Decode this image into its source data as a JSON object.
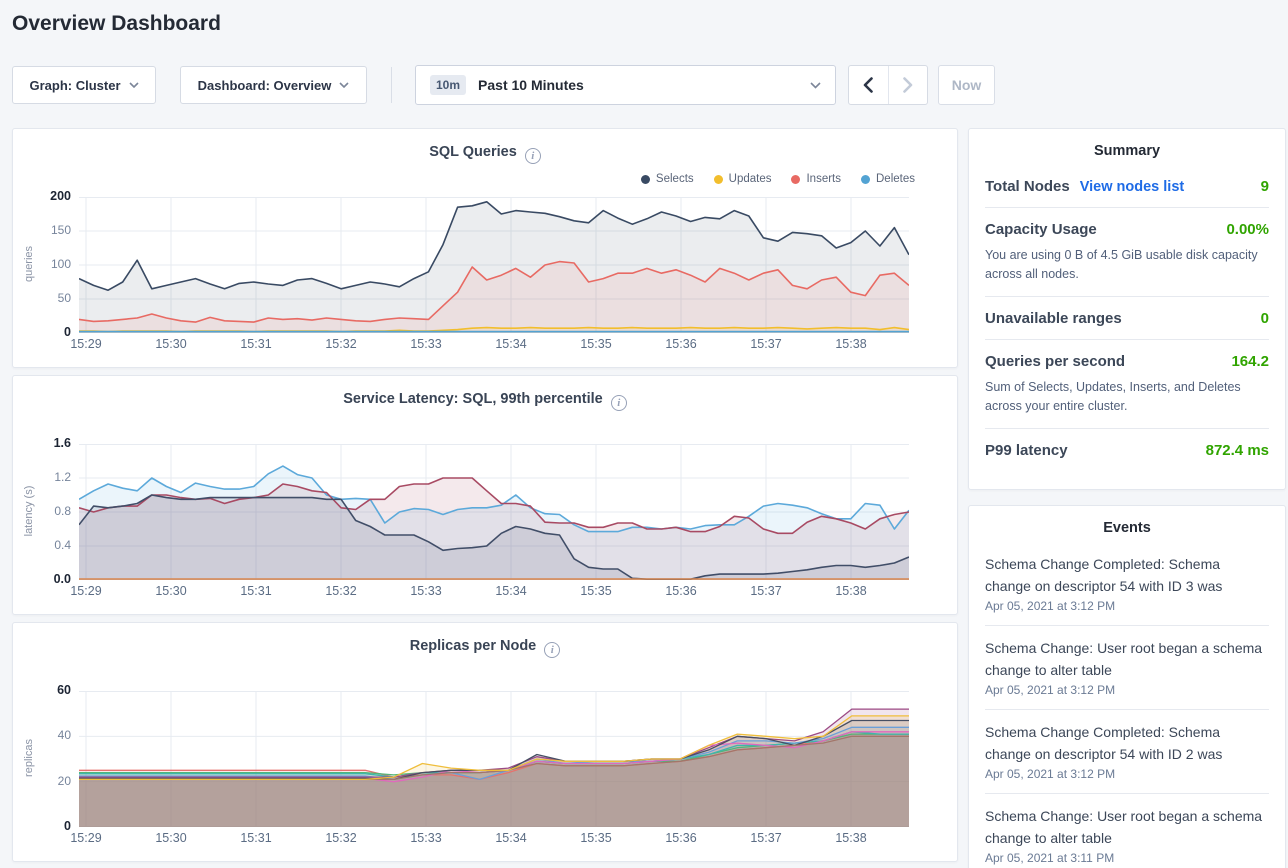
{
  "page_title": "Overview Dashboard",
  "toolbar": {
    "graph_dropdown": "Graph: Cluster",
    "dashboard_dropdown": "Dashboard: Overview",
    "time_badge": "10m",
    "time_label": "Past 10 Minutes",
    "now_label": "Now"
  },
  "summary": {
    "title": "Summary",
    "rows": [
      {
        "label": "Total Nodes",
        "link": "View nodes list",
        "value": "9"
      },
      {
        "label": "Capacity Usage",
        "value": "0.00%",
        "note": "You are using 0 B of 4.5 GiB usable disk capacity across all nodes."
      },
      {
        "label": "Unavailable ranges",
        "value": "0"
      },
      {
        "label": "Queries per second",
        "value": "164.2",
        "note": "Sum of Selects, Updates, Inserts, and Deletes across your entire cluster."
      },
      {
        "label": "P99 latency",
        "value": "872.4 ms"
      }
    ],
    "value_color": "#30a400",
    "link_color": "#1e6be6"
  },
  "events": {
    "title": "Events",
    "items": [
      {
        "text": "Schema Change Completed: Schema change on descriptor 54 with ID 3 was",
        "time": "Apr 05, 2021 at 3:12 PM"
      },
      {
        "text": "Schema Change: User root began a schema change to alter table",
        "time": "Apr 05, 2021 at 3:12 PM"
      },
      {
        "text": "Schema Change Completed: Schema change on descriptor 54 with ID 2 was",
        "time": "Apr 05, 2021 at 3:12 PM"
      },
      {
        "text": "Schema Change: User root began a schema change to alter table",
        "time": "Apr 05, 2021 at 3:11 PM"
      }
    ]
  },
  "chart_data": [
    {
      "type": "area",
      "title": "SQL Queries",
      "ylabel": "queries",
      "ylim": [
        0,
        200
      ],
      "y_ticks": [
        "0",
        "50",
        "100",
        "150",
        "200"
      ],
      "x_ticks": [
        "15:29",
        "15:30",
        "15:31",
        "15:32",
        "15:33",
        "15:34",
        "15:35",
        "15:36",
        "15:37",
        "15:38"
      ],
      "grid": true,
      "legend_position": "top-right",
      "legend": [
        {
          "label": "Selects",
          "color": "#394a63"
        },
        {
          "label": "Updates",
          "color": "#f2be2d"
        },
        {
          "label": "Inserts",
          "color": "#e86a63"
        },
        {
          "label": "Deletes",
          "color": "#53a3d3"
        }
      ],
      "series": [
        {
          "name": "Selects",
          "color": "#394a63",
          "values": [
            80,
            70,
            63,
            75,
            107,
            65,
            70,
            75,
            80,
            72,
            65,
            73,
            75,
            72,
            70,
            78,
            80,
            73,
            65,
            70,
            75,
            72,
            68,
            80,
            90,
            130,
            185,
            187,
            193,
            175,
            180,
            178,
            176,
            171,
            165,
            162,
            180,
            169,
            160,
            168,
            178,
            172,
            164,
            170,
            168,
            180,
            172,
            140,
            135,
            148,
            146,
            143,
            125,
            133,
            150,
            128,
            155,
            115
          ]
        },
        {
          "name": "Inserts",
          "color": "#e86a63",
          "values": [
            20,
            17,
            18,
            20,
            22,
            28,
            22,
            18,
            16,
            23,
            18,
            17,
            16,
            22,
            20,
            21,
            19,
            22,
            20,
            18,
            17,
            20,
            22,
            21,
            20,
            40,
            60,
            97,
            78,
            85,
            95,
            82,
            100,
            105,
            103,
            75,
            80,
            88,
            88,
            95,
            88,
            93,
            85,
            75,
            95,
            88,
            78,
            88,
            93,
            70,
            65,
            78,
            82,
            60,
            55,
            85,
            88,
            70
          ]
        },
        {
          "name": "Updates",
          "color": "#f2be2d",
          "values": [
            3,
            3,
            2,
            3,
            3,
            3,
            3,
            2,
            3,
            3,
            3,
            3,
            2,
            3,
            3,
            3,
            3,
            3,
            2,
            3,
            3,
            3,
            4,
            3,
            3,
            4,
            5,
            7,
            8,
            7,
            7,
            8,
            7,
            7,
            7,
            8,
            7,
            7,
            8,
            7,
            7,
            7,
            8,
            7,
            7,
            8,
            7,
            7,
            8,
            7,
            6,
            7,
            8,
            7,
            7,
            5,
            8,
            5
          ]
        },
        {
          "name": "Deletes",
          "color": "#53a3d3",
          "values": [
            2,
            2
          ]
        }
      ]
    },
    {
      "type": "area",
      "title": "Service Latency: SQL, 99th percentile",
      "ylabel": "latency (s)",
      "ylim": [
        0,
        1.6
      ],
      "y_ticks": [
        "0.0",
        "0.4",
        "0.8",
        "1.2",
        "1.6"
      ],
      "x_ticks": [
        "15:29",
        "15:30",
        "15:31",
        "15:32",
        "15:33",
        "15:34",
        "15:35",
        "15:36",
        "15:37",
        "15:38"
      ],
      "grid": true,
      "legend": [],
      "series": [
        {
          "name": "",
          "color": "#5ca9da",
          "values": [
            0.95,
            1.05,
            1.13,
            1.08,
            1.05,
            1.2,
            1.1,
            1.03,
            1.14,
            1.1,
            1.07,
            1.07,
            1.1,
            1.25,
            1.34,
            1.24,
            1.2,
            1.0,
            0.95,
            0.96,
            0.95,
            0.67,
            0.8,
            0.84,
            0.83,
            0.77,
            0.83,
            0.85,
            0.85,
            0.88,
            1.0,
            0.85,
            0.78,
            0.77,
            0.65,
            0.57,
            0.57,
            0.57,
            0.62,
            0.62,
            0.6,
            0.62,
            0.6,
            0.64,
            0.65,
            0.65,
            0.75,
            0.87,
            0.9,
            0.88,
            0.85,
            0.78,
            0.72,
            0.72,
            0.9,
            0.88,
            0.6,
            0.82
          ]
        },
        {
          "name": "",
          "color": "#a84a63",
          "values": [
            0.85,
            0.8,
            0.85,
            0.87,
            0.87,
            1.0,
            1.0,
            0.97,
            0.95,
            0.96,
            0.9,
            0.95,
            0.97,
            1.0,
            1.13,
            1.1,
            1.05,
            1.03,
            0.85,
            0.83,
            0.95,
            0.95,
            1.1,
            1.13,
            1.13,
            1.2,
            1.2,
            1.2,
            1.05,
            0.9,
            0.9,
            0.87,
            0.68,
            0.67,
            0.67,
            0.62,
            0.62,
            0.67,
            0.67,
            0.6,
            0.6,
            0.62,
            0.57,
            0.57,
            0.63,
            0.75,
            0.73,
            0.6,
            0.55,
            0.55,
            0.68,
            0.75,
            0.72,
            0.67,
            0.6,
            0.72,
            0.77,
            0.8
          ]
        },
        {
          "name": "",
          "color": "#414e68",
          "values": [
            0.65,
            0.87,
            0.85,
            0.87,
            0.9,
            1.0,
            0.97,
            0.95,
            0.95,
            0.97,
            0.97,
            0.97,
            0.97,
            0.97,
            0.97,
            0.97,
            0.97,
            0.95,
            0.95,
            0.7,
            0.63,
            0.53,
            0.53,
            0.53,
            0.45,
            0.35,
            0.37,
            0.38,
            0.4,
            0.55,
            0.63,
            0.6,
            0.55,
            0.53,
            0.25,
            0.15,
            0.13,
            0.13,
            0.02,
            0.0,
            0.0,
            0.0,
            0.0,
            0.05,
            0.07,
            0.07,
            0.07,
            0.07,
            0.08,
            0.1,
            0.12,
            0.15,
            0.17,
            0.17,
            0.15,
            0.17,
            0.2,
            0.27
          ]
        },
        {
          "name": "",
          "color": "#d9874f",
          "values": [
            0.012,
            0.012
          ]
        }
      ]
    },
    {
      "type": "area",
      "title": "Replicas per Node",
      "ylabel": "replicas",
      "ylim": [
        0,
        60
      ],
      "y_ticks": [
        "0",
        "20",
        "40",
        "60"
      ],
      "x_ticks": [
        "15:29",
        "15:30",
        "15:31",
        "15:32",
        "15:33",
        "15:34",
        "15:35",
        "15:36",
        "15:37",
        "15:38"
      ],
      "grid": true,
      "legend": [],
      "series": [
        {
          "name": "",
          "color": "#e6726d",
          "values": [
            25,
            25,
            25,
            25,
            25,
            25,
            25,
            25,
            25,
            25,
            25,
            22,
            23,
            23,
            21,
            24,
            28,
            27,
            27,
            27,
            28,
            29,
            31,
            34,
            35,
            36,
            38,
            41,
            41,
            41
          ]
        },
        {
          "name": "",
          "color": "#52b578",
          "values": [
            24,
            24,
            24,
            24,
            24,
            24,
            24,
            24,
            24,
            24,
            24,
            23,
            24,
            24,
            24,
            25,
            29,
            28,
            28,
            28,
            29,
            29,
            32,
            35,
            36,
            37,
            38,
            41,
            41,
            41
          ]
        },
        {
          "name": "",
          "color": "#3fb5ac",
          "values": [
            23.5,
            23.5,
            23.5,
            23.5,
            23.5,
            23.5,
            23.5,
            23.5,
            23.5,
            23.5,
            23.5,
            22,
            24,
            24,
            24,
            25,
            29,
            28,
            28,
            28,
            29,
            30,
            32,
            36,
            36,
            37,
            38,
            42,
            41,
            41
          ]
        },
        {
          "name": "",
          "color": "#6b9fd8",
          "values": [
            22.5,
            22.5,
            22.5,
            22.5,
            22.5,
            22.5,
            22.5,
            22.5,
            22.5,
            22.5,
            22.5,
            21,
            23,
            24,
            21,
            25,
            30,
            28,
            29,
            29,
            29,
            30,
            33,
            38,
            38,
            37,
            39,
            44,
            44,
            44
          ]
        },
        {
          "name": "",
          "color": "#9c4a84",
          "values": [
            22,
            22,
            22,
            22,
            22,
            22,
            22,
            22,
            22,
            22,
            22,
            22,
            24,
            25,
            25,
            26,
            31,
            29,
            29,
            29,
            30,
            30,
            35,
            40,
            39,
            38,
            42,
            52,
            52,
            52
          ]
        },
        {
          "name": "",
          "color": "#e069bd",
          "values": [
            21.5,
            21.5,
            21.5,
            21.5,
            21.5,
            21.5,
            21.5,
            21.5,
            21.5,
            21.5,
            21.5,
            20,
            22,
            25,
            24,
            25,
            29,
            28,
            28,
            28,
            29,
            30,
            36,
            37,
            36,
            35,
            38,
            42,
            42,
            42
          ]
        },
        {
          "name": "",
          "color": "#474f63",
          "values": [
            21.5,
            21.5,
            21.5,
            21.5,
            21.5,
            21.5,
            21.5,
            21.5,
            21.5,
            21.5,
            21.5,
            21,
            24,
            25,
            25,
            25,
            32,
            29,
            29,
            29,
            30,
            30,
            34,
            40,
            39,
            36,
            40,
            47,
            47,
            47
          ]
        },
        {
          "name": "",
          "color": "#a3766a",
          "values": [
            21,
            21,
            21,
            21,
            21,
            21,
            21,
            21,
            21,
            21,
            21,
            21,
            23,
            24,
            24,
            25,
            28,
            27,
            27,
            27,
            28,
            29,
            31,
            34,
            35,
            36,
            37,
            40,
            40,
            40
          ]
        },
        {
          "name": "",
          "color": "#efbe3c",
          "values": [
            21,
            21,
            21,
            21,
            21,
            21,
            21,
            21,
            21,
            21,
            21,
            22,
            28,
            26,
            25,
            25,
            30,
            29,
            29,
            29,
            30,
            30,
            36,
            41,
            40,
            39,
            40,
            49,
            49,
            49
          ]
        }
      ]
    }
  ]
}
